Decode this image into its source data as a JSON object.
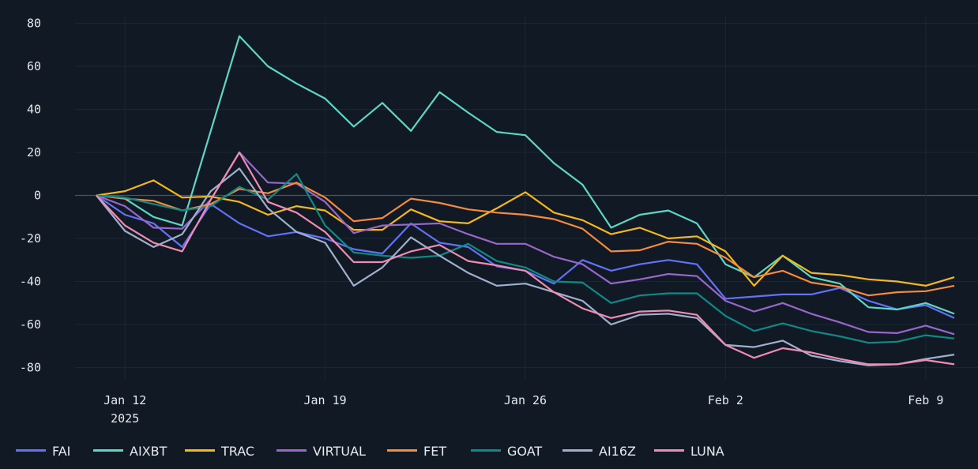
{
  "chart_data": {
    "type": "line",
    "title": "",
    "xlabel": "",
    "ylabel": "",
    "ylim": [
      -90,
      85
    ],
    "yticks": [
      80,
      60,
      40,
      20,
      0,
      -20,
      -40,
      -60,
      -80
    ],
    "grid": true,
    "legend_position": "bottom-left",
    "x": [
      "2025-01-11",
      "2025-01-12",
      "2025-01-13",
      "2025-01-14",
      "2025-01-15",
      "2025-01-16",
      "2025-01-17",
      "2025-01-18",
      "2025-01-19",
      "2025-01-20",
      "2025-01-21",
      "2025-01-22",
      "2025-01-23",
      "2025-01-24",
      "2025-01-25",
      "2025-01-26",
      "2025-01-27",
      "2025-01-28",
      "2025-01-29",
      "2025-01-30",
      "2025-01-31",
      "2025-02-01",
      "2025-02-02",
      "2025-02-03",
      "2025-02-04",
      "2025-02-05",
      "2025-02-06",
      "2025-02-07",
      "2025-02-08",
      "2025-02-09",
      "2025-02-10"
    ],
    "xticks": [
      {
        "index": 1,
        "label": "Jan 12",
        "sublabel": "2025"
      },
      {
        "index": 8,
        "label": "Jan 19"
      },
      {
        "index": 15,
        "label": "Jan 26"
      },
      {
        "index": 22,
        "label": "Feb 2"
      },
      {
        "index": 29,
        "label": "Feb 9"
      }
    ],
    "series": [
      {
        "name": "FAI",
        "color": "#6272f6",
        "values": [
          0,
          -9,
          -13,
          -24,
          -4,
          -13,
          -19,
          -17,
          -20,
          -25,
          -27,
          -13,
          -22,
          -24,
          -33,
          -35,
          -41,
          -30,
          -35,
          -32,
          -30,
          -32,
          -48,
          -47,
          -46,
          -46,
          -43,
          -49,
          -53,
          -51,
          -57
        ]
      },
      {
        "name": "AIXBT",
        "color": "#5dd6c6",
        "values": [
          0,
          -1.5,
          -10,
          -14,
          30,
          74,
          60,
          52,
          45,
          32,
          43,
          30,
          48,
          38.5,
          29.5,
          28,
          15,
          5,
          -15,
          -9,
          -7,
          -13,
          -32,
          -38,
          -28,
          -38,
          -41,
          -52,
          -53,
          -50,
          -55
        ]
      },
      {
        "name": "TRAC",
        "color": "#f5b81a",
        "values": [
          0,
          2,
          7,
          -1,
          -0.5,
          -3,
          -9,
          -5,
          -7,
          -16,
          -16,
          -6.5,
          -12,
          -13,
          -6,
          1.5,
          -8,
          -11.5,
          -18,
          -15,
          -20,
          -19,
          -26,
          -42,
          -28,
          -36,
          -37,
          -39,
          -40,
          -42,
          -38
        ]
      },
      {
        "name": "VIRTUAL",
        "color": "#9966cc",
        "values": [
          0,
          -5,
          -15,
          -15.5,
          -2,
          20,
          6,
          5.5,
          -3,
          -17.5,
          -14,
          -13.5,
          -13,
          -18,
          -22.5,
          -22.5,
          -28.5,
          -32,
          -41,
          -39,
          -36.5,
          -37.5,
          -49,
          -54,
          -50,
          -55,
          -59,
          -63.5,
          -64,
          -60.5,
          -64.5
        ]
      },
      {
        "name": "FET",
        "color": "#f58b3c",
        "values": [
          0,
          -1.5,
          -2.5,
          -7,
          -4,
          3,
          1,
          6,
          -1,
          -12,
          -10.5,
          -1.5,
          -3.5,
          -6.5,
          -8,
          -9,
          -11,
          -15.5,
          -26,
          -25.5,
          -21.5,
          -22.5,
          -29,
          -38,
          -35,
          -40.5,
          -42.5,
          -46.5,
          -45,
          -44.5,
          -42
        ]
      },
      {
        "name": "GOAT",
        "color": "#0d8a87",
        "values": [
          0,
          -1,
          -4,
          -7,
          -5,
          4,
          -2,
          10,
          -14,
          -26.5,
          -28,
          -29,
          -28,
          -22.5,
          -30.5,
          -33.5,
          -40,
          -40.5,
          -50,
          -46.5,
          -45.5,
          -45.5,
          -56,
          -63,
          -59.5,
          -63,
          -65.5,
          -68.5,
          -68,
          -65,
          -66.5
        ]
      },
      {
        "name": "AI16Z",
        "color": "#9fb0cc",
        "values": [
          0,
          -16.5,
          -24,
          -18,
          2,
          12.5,
          -6,
          -17,
          -22,
          -42,
          -33.5,
          -19.5,
          -28,
          -36,
          -42,
          -41,
          -45,
          -49,
          -60,
          -55.5,
          -55,
          -57,
          -69.5,
          -70.5,
          -67.5,
          -74.5,
          -77,
          -79,
          -78.5,
          -76,
          -74
        ]
      },
      {
        "name": "LUNA",
        "color": "#f08cb4",
        "values": [
          0,
          -14,
          -22,
          -26,
          -2,
          20,
          -3,
          -8,
          -17,
          -31,
          -31,
          -26,
          -23,
          -30.5,
          -32.5,
          -35,
          -45,
          -52.5,
          -57,
          -54,
          -53.5,
          -55.5,
          -69.5,
          -75.5,
          -71,
          -73,
          -76,
          -78.5,
          -78.5,
          -76.5,
          -78.5
        ]
      }
    ]
  },
  "style": {
    "background": "#111a24",
    "grid": "#1c2633",
    "zero_line": "#4a525c"
  }
}
